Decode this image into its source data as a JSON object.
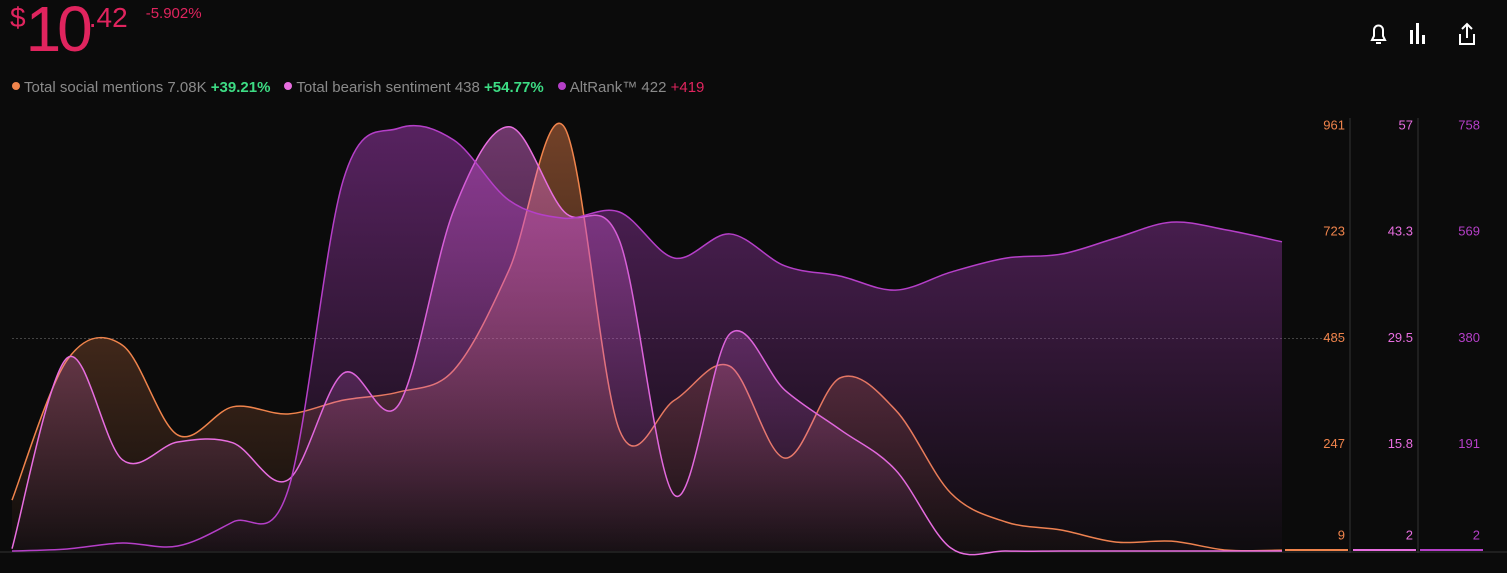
{
  "header": {
    "currency": "$",
    "integer": "10",
    "decimal": ".42",
    "change": "-5.902%"
  },
  "chart_data": {
    "type": "area",
    "series": [
      {
        "name": "Total social mentions",
        "total": "7.08K",
        "change": "+39.21%",
        "color": "#f0844c",
        "values": [
          123,
          437,
          470,
          269,
          332,
          316,
          347,
          365,
          414,
          638,
          959,
          280,
          347,
          423,
          217,
          397,
          325,
          139,
          74,
          56,
          29,
          31,
          11,
          11
        ],
        "ylim": [
          9,
          961
        ],
        "yticks": [
          9,
          247,
          485,
          723,
          961
        ]
      },
      {
        "name": "Total bearish sentiment",
        "total": "438",
        "change": "+54.77%",
        "color": "#e86ee0",
        "values": [
          2.3,
          27,
          13.8,
          16.1,
          16,
          11.2,
          25,
          20.9,
          46.1,
          56.9,
          45.9,
          42.2,
          9.2,
          30.1,
          22.8,
          17.7,
          12.5,
          2.4,
          2,
          2,
          2,
          2,
          2,
          2
        ],
        "ylim": [
          2,
          57
        ],
        "yticks": [
          2,
          15.8,
          29.5,
          43.3,
          57
        ]
      },
      {
        "name": "AltRank™",
        "total": "422",
        "change": "+419",
        "color": "#b53fc8",
        "values": [
          2,
          5.6,
          16.2,
          10.9,
          53.6,
          110.5,
          662,
          754,
          733,
          626,
          594,
          605,
          523,
          566,
          509,
          491,
          466,
          498,
          523,
          530,
          559,
          587,
          573,
          552
        ],
        "ylim": [
          2,
          758
        ],
        "yticks": [
          2,
          191,
          380,
          569,
          758
        ]
      }
    ]
  }
}
